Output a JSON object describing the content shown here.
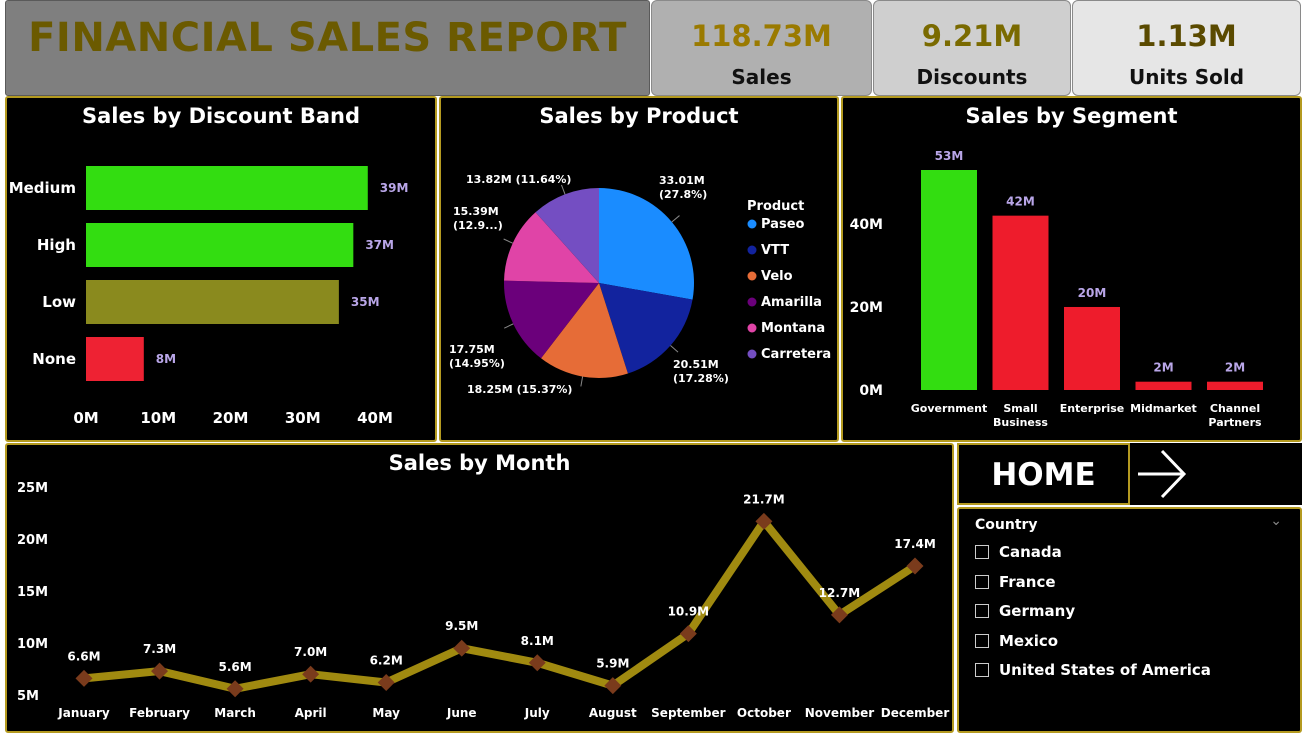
{
  "header": {
    "title": "FINANCIAL SALES REPORT"
  },
  "kpis": [
    {
      "value": "118.73M",
      "label": "Sales"
    },
    {
      "value": "9.21M",
      "label": "Discounts"
    },
    {
      "value": "1.13M",
      "label": "Units Sold"
    }
  ],
  "nav": {
    "home_label": "HOME",
    "arrow_icon": "arrow-right-icon"
  },
  "slicer": {
    "title": "Country",
    "chevron_icon": "chevron-down-icon",
    "options": [
      "Canada",
      "France",
      "Germany",
      "Mexico",
      "United States of America"
    ]
  },
  "chart_data": [
    {
      "type": "bar",
      "orientation": "horizontal",
      "title": "Sales by Discount Band",
      "categories": [
        "Medium",
        "High",
        "Low",
        "None"
      ],
      "values": [
        39,
        37,
        35,
        8
      ],
      "data_labels": [
        "39M",
        "37M",
        "35M",
        "8M"
      ],
      "colors": [
        "#33dd11",
        "#33dd11",
        "#8a8a1e",
        "#ee2233"
      ],
      "x_ticks": [
        "0M",
        "10M",
        "20M",
        "30M",
        "40M"
      ],
      "xlim": [
        0,
        40
      ]
    },
    {
      "type": "pie",
      "title": "Sales by Product",
      "legend_title": "Product",
      "legend_position": "right",
      "slices": [
        {
          "name": "Paseo",
          "value": 33.01,
          "label": "33.01M (27.8%)",
          "color": "#1a8cff"
        },
        {
          "name": "VTT",
          "value": 20.51,
          "label": "20.51M (17.28%)",
          "color": "#12239e"
        },
        {
          "name": "Velo",
          "value": 18.25,
          "label": "18.25M (15.37%)",
          "color": "#e66c37"
        },
        {
          "name": "Amarilla",
          "value": 17.75,
          "label": "17.75M (14.95%)",
          "color": "#6b007b"
        },
        {
          "name": "Montana",
          "value": 15.39,
          "label": "15.39M (12.9...)",
          "color": "#e044a7"
        },
        {
          "name": "Carretera",
          "value": 13.82,
          "label": "13.82M (11.64%)",
          "color": "#744ec2"
        }
      ]
    },
    {
      "type": "bar",
      "orientation": "vertical",
      "title": "Sales by Segment",
      "categories": [
        "Government",
        "Small Business",
        "Enterprise",
        "Midmarket",
        "Channel Partners"
      ],
      "values": [
        53,
        42,
        20,
        2,
        2
      ],
      "data_labels": [
        "53M",
        "42M",
        "20M",
        "2M",
        "2M"
      ],
      "colors": [
        "#33dd11",
        "#ee1c2c",
        "#ee1c2c",
        "#ee1c2c",
        "#ee1c2c"
      ],
      "y_ticks": [
        "0M",
        "20M",
        "40M"
      ],
      "ylim": [
        0,
        53
      ]
    },
    {
      "type": "line",
      "title": "Sales by Month",
      "categories": [
        "January",
        "February",
        "March",
        "April",
        "May",
        "June",
        "July",
        "August",
        "September",
        "October",
        "November",
        "December"
      ],
      "values": [
        6.6,
        7.3,
        5.6,
        7.0,
        6.2,
        9.5,
        8.1,
        5.9,
        10.9,
        21.7,
        12.7,
        17.4
      ],
      "data_labels": [
        "6.6M",
        "7.3M",
        "5.6M",
        "7.0M",
        "6.2M",
        "9.5M",
        "8.1M",
        "5.9M",
        "10.9M",
        "21.7M",
        "12.7M",
        "17.4M"
      ],
      "y_ticks": [
        "5M",
        "10M",
        "15M",
        "20M",
        "25M"
      ],
      "ylim": [
        5,
        25
      ],
      "line_color": "#a08a10",
      "marker_color": "#7a3b1c"
    }
  ]
}
